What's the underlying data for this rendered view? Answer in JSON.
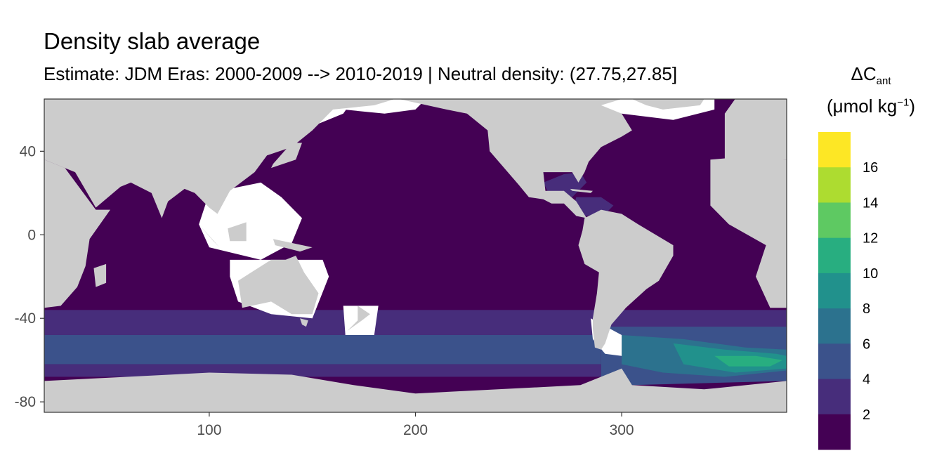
{
  "header": {
    "title": "Density slab average",
    "subtitle": "Estimate: JDM Eras: 2000-2009 --> 2010-2019 | Neutral density: (27.75,27.85]"
  },
  "legend": {
    "symbol": "ΔC",
    "symbol_sub": "ant",
    "unit_prefix": "(μmol kg",
    "unit_sup": "−1",
    "unit_suffix": ")",
    "labels": [
      "16",
      "14",
      "12",
      "10",
      "8",
      "6",
      "4",
      "2"
    ],
    "colors": [
      "#fde725",
      "#addc30",
      "#5ec962",
      "#28ae80",
      "#21918c",
      "#2c728e",
      "#3b528b",
      "#472d7b",
      "#440154"
    ]
  },
  "colors": {
    "land": "#cccccc",
    "no_data": "#ffffff",
    "panel_border": "#333333"
  },
  "chart_data": {
    "type": "heatmap",
    "title": "Density slab average",
    "subtitle": "Estimate: JDM Eras: 2000-2009 --> 2010-2019 | Neutral density: (27.75,27.85]",
    "xlabel": "",
    "ylabel": "",
    "xlim": [
      20,
      380
    ],
    "ylim": [
      -85,
      65
    ],
    "x_ticks": [
      100,
      200,
      300
    ],
    "y_ticks": [
      40,
      0,
      -40,
      -80
    ],
    "legend_position": "right",
    "color_scale": "viridis",
    "bins": [
      0,
      2,
      4,
      6,
      8,
      10,
      12,
      14,
      16,
      18
    ],
    "legend_labels": [
      "2",
      "4",
      "6",
      "8",
      "10",
      "12",
      "14",
      "16"
    ],
    "zones": [
      {
        "region": "Global ocean north of 36S",
        "value_range": [
          0,
          2
        ]
      },
      {
        "region": "Caribbean Sea / Gulf of Mexico",
        "value_range": [
          2,
          4
        ]
      },
      {
        "region": "Southern Ocean 36S-48S",
        "value_range": [
          2,
          4
        ]
      },
      {
        "region": "Southern Ocean 48S-62S, Indian/Pacific sector",
        "value_range": [
          4,
          6
        ]
      },
      {
        "region": "Southern Ocean, Atlantic sector (Weddell gyre)",
        "value_range": [
          8,
          12
        ]
      },
      {
        "region": "Antarctic margin",
        "value_range": [
          0,
          2
        ]
      }
    ]
  }
}
